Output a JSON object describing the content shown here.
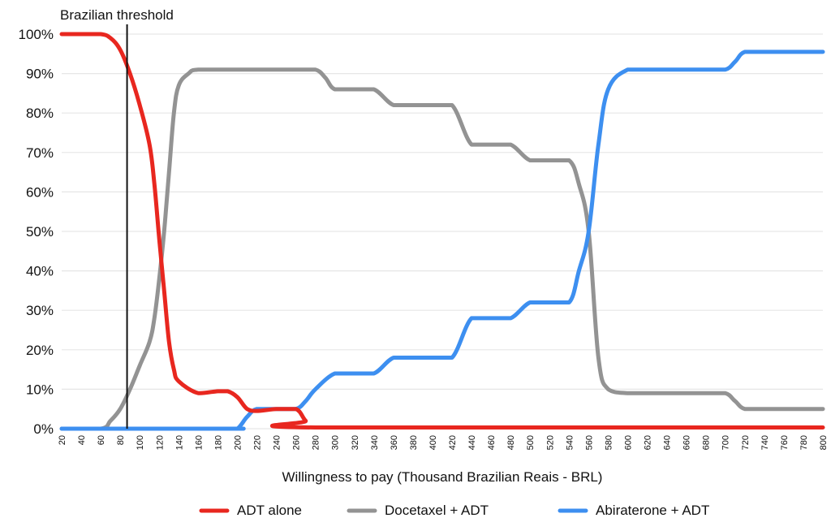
{
  "chart_data": {
    "type": "line",
    "title": "",
    "xlabel": "Willingness to pay (Thousand Brazilian Reais - BRL)",
    "ylabel": "",
    "xlim": [
      20,
      800
    ],
    "ylim": [
      0,
      100
    ],
    "y_ticks": [
      "0%",
      "10%",
      "20%",
      "30%",
      "40%",
      "50%",
      "60%",
      "70%",
      "80%",
      "90%",
      "100%"
    ],
    "x_ticks": [
      "20",
      "40",
      "60",
      "80",
      "100",
      "120",
      "140",
      "160",
      "180",
      "200",
      "220",
      "240",
      "260",
      "280",
      "300",
      "320",
      "340",
      "360",
      "380",
      "400",
      "420",
      "440",
      "460",
      "480",
      "500",
      "520",
      "540",
      "560",
      "580",
      "600",
      "620",
      "640",
      "660",
      "680",
      "700",
      "720",
      "740",
      "760",
      "780",
      "800"
    ],
    "grid": true,
    "threshold": {
      "label": "Brazilian threshold",
      "x": 87
    },
    "colors": {
      "adt": "#e8271f",
      "docetaxel": "#939393",
      "abiraterone": "#3d8ff0",
      "threshold": "#111111",
      "grid": "#e6e6e6"
    },
    "series": [
      {
        "name": "ADT alone",
        "color": "#e8271f",
        "x": [
          20,
          40,
          60,
          70,
          80,
          90,
          100,
          110,
          115,
          120,
          125,
          130,
          135,
          140,
          160,
          180,
          190,
          200,
          210,
          220,
          240,
          260,
          270,
          280,
          800
        ],
        "y": [
          100,
          100,
          100,
          99,
          96,
          90,
          82,
          72,
          62,
          48,
          35,
          22,
          15,
          12,
          9,
          9.5,
          9.5,
          8,
          5,
          4.5,
          5,
          5,
          2,
          0.3,
          0.3
        ]
      },
      {
        "name": "Docetaxel + ADT",
        "color": "#939393",
        "x": [
          20,
          60,
          70,
          80,
          90,
          100,
          110,
          115,
          120,
          125,
          130,
          135,
          140,
          150,
          160,
          200,
          260,
          280,
          290,
          300,
          320,
          340,
          360,
          380,
          400,
          420,
          440,
          460,
          480,
          500,
          520,
          540,
          550,
          560,
          570,
          580,
          600,
          620,
          680,
          700,
          710,
          720,
          740,
          800
        ],
        "y": [
          0,
          0,
          2,
          5,
          10,
          16,
          22,
          28,
          38,
          50,
          65,
          80,
          87,
          90,
          91,
          91,
          91,
          91,
          89,
          86,
          86,
          86,
          82,
          82,
          82,
          82,
          72,
          72,
          72,
          68,
          68,
          68,
          62,
          50,
          18,
          10,
          9,
          9,
          9,
          9,
          7,
          5,
          5,
          5
        ]
      },
      {
        "name": "Abiraterone + ADT",
        "color": "#3d8ff0",
        "x": [
          20,
          190,
          200,
          210,
          220,
          240,
          260,
          270,
          280,
          300,
          320,
          340,
          360,
          380,
          400,
          420,
          440,
          460,
          480,
          500,
          520,
          540,
          550,
          560,
          570,
          580,
          600,
          620,
          680,
          700,
          710,
          720,
          740,
          800
        ],
        "y": [
          0,
          0,
          0,
          3,
          5,
          5,
          5,
          7,
          10,
          14,
          14,
          14,
          18,
          18,
          18,
          18,
          28,
          28,
          28,
          32,
          32,
          32,
          40,
          50,
          72,
          86,
          91,
          91,
          91,
          91,
          93,
          95.5,
          95.5,
          95.5
        ]
      }
    ]
  }
}
